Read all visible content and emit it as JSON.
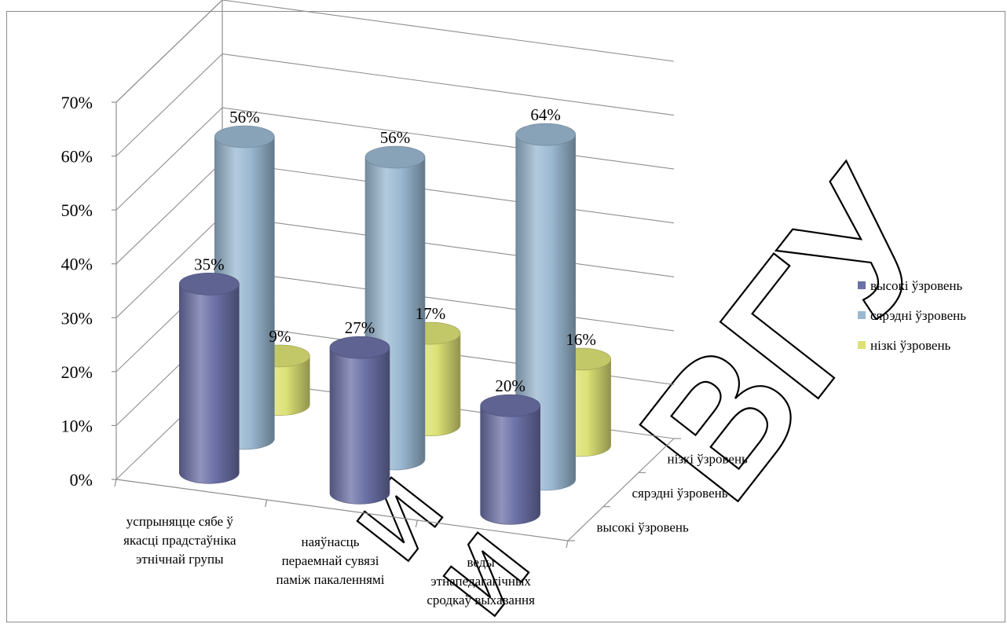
{
  "chart_data": {
    "type": "bar",
    "title": "",
    "xlabel": "",
    "ylabel": "",
    "ylim": [
      0,
      0.7
    ],
    "yticks": [
      "0%",
      "10%",
      "20%",
      "30%",
      "40%",
      "50%",
      "60%",
      "70%"
    ],
    "categories": [
      [
        "успрыняцце сябе ў",
        "якасці прадстаўніка",
        "этнічнай групы"
      ],
      [
        "наяўнасць",
        "пераемнай сувязі",
        "паміж пакаленнямі"
      ],
      [
        "веды",
        "этнапедагагічных",
        "сродкаў выхавання"
      ]
    ],
    "depth_labels": [
      "высокі ўзровень",
      "сярэдні ўзровень",
      "нізкі ўзровень"
    ],
    "series": [
      {
        "name": "высокі ўзровень",
        "values": [
          0.35,
          0.27,
          0.2
        ],
        "labels": [
          "35%",
          "27%",
          "20%"
        ],
        "color": "#6b70a6"
      },
      {
        "name": "сярэдні ўзровень",
        "values": [
          0.56,
          0.56,
          0.64
        ],
        "labels": [
          "56%",
          "56%",
          "64%"
        ],
        "color": "#9ab8d1"
      },
      {
        "name": "нізкі ўзровень",
        "values": [
          0.09,
          0.17,
          0.16
        ],
        "labels": [
          "9%",
          "17%",
          "16%"
        ],
        "color": "#dde276"
      }
    ],
    "legend": {
      "position": "right",
      "entries": [
        "высокі ўзровень",
        "сярэдні ўзровень",
        "нізкі ўзровень"
      ]
    },
    "grid": true,
    "watermark": "ИИ ВГУ"
  }
}
